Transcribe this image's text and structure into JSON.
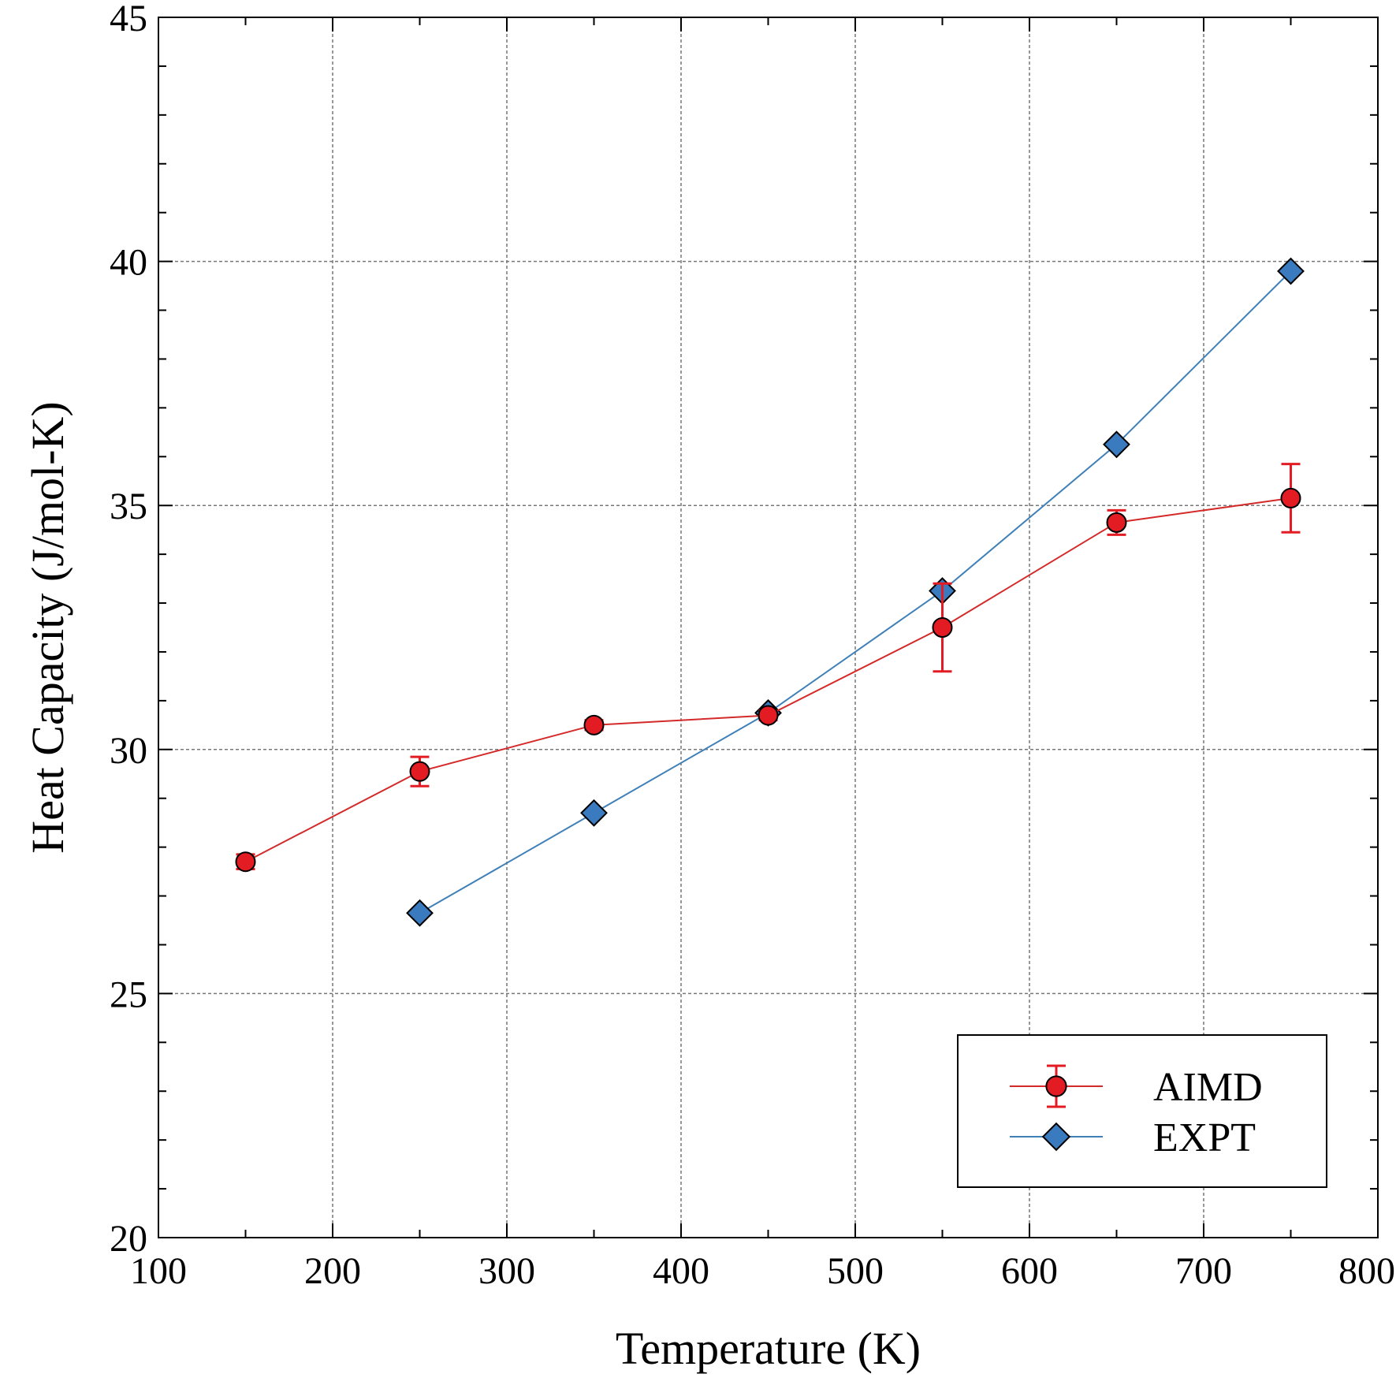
{
  "chart_data": {
    "type": "line",
    "title": "",
    "xlabel": "Temperature (K)",
    "ylabel": "Heat Capacity (J/mol-K)",
    "xlim": [
      100,
      800
    ],
    "ylim": [
      20,
      45
    ],
    "x_ticks": [
      100,
      200,
      300,
      400,
      500,
      600,
      700,
      800
    ],
    "y_ticks": [
      20,
      25,
      30,
      35,
      40,
      45
    ],
    "x_tick_labels": [
      "100",
      "200",
      "300",
      "400",
      "500",
      "600",
      "700",
      "800"
    ],
    "y_tick_labels": [
      "20",
      "25",
      "30",
      "35",
      "40",
      "45"
    ],
    "grid": true,
    "legend_position": "bottom-right",
    "series": [
      {
        "name": "AIMD",
        "color": "#e31b23",
        "line_color": "#d42a2a",
        "marker": "circle",
        "x": [
          150,
          250,
          350,
          450,
          550,
          650,
          750
        ],
        "y": [
          27.7,
          29.55,
          30.5,
          30.7,
          32.5,
          34.65,
          35.15
        ],
        "yerr": [
          0.15,
          0.3,
          0.1,
          0.1,
          0.9,
          0.25,
          0.7
        ]
      },
      {
        "name": "EXPT",
        "color": "#3a7bbf",
        "line_color": "#3f80b8",
        "marker": "diamond",
        "x": [
          250,
          350,
          450,
          550,
          650,
          750
        ],
        "y": [
          26.65,
          28.7,
          30.75,
          33.25,
          36.25,
          39.8
        ]
      }
    ]
  }
}
